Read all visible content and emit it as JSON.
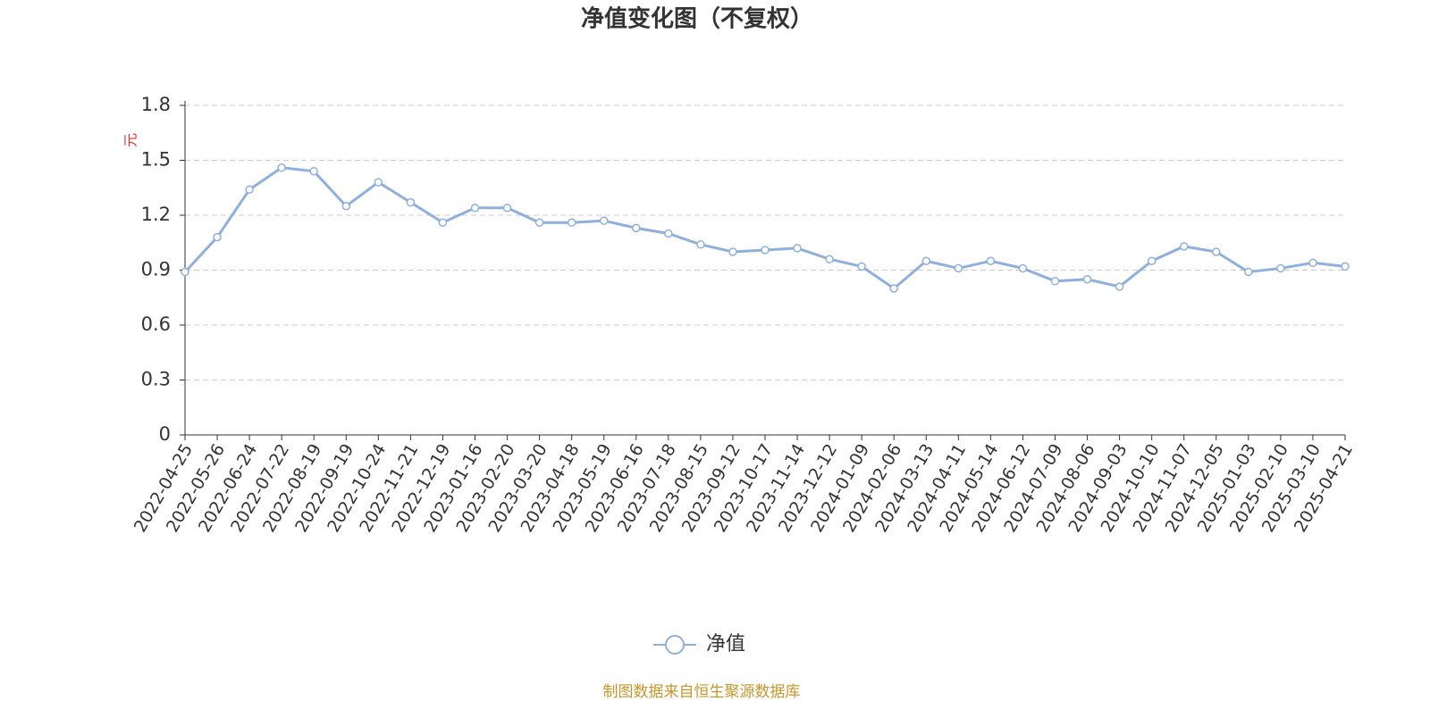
{
  "chart_data": {
    "type": "line",
    "title": "净值变化图（不复权）",
    "y_label": "元",
    "categories": [
      "2022-04-25",
      "2022-05-26",
      "2022-06-24",
      "2022-07-22",
      "2022-08-19",
      "2022-09-19",
      "2022-10-24",
      "2022-11-21",
      "2022-12-19",
      "2023-01-16",
      "2023-02-20",
      "2023-03-20",
      "2023-04-18",
      "2023-05-19",
      "2023-06-16",
      "2023-07-18",
      "2023-08-15",
      "2023-09-12",
      "2023-10-17",
      "2023-11-14",
      "2023-12-12",
      "2024-01-09",
      "2024-02-06",
      "2024-03-13",
      "2024-04-11",
      "2024-05-14",
      "2024-06-12",
      "2024-07-09",
      "2024-08-06",
      "2024-09-03",
      "2024-10-10",
      "2024-11-07",
      "2024-12-05",
      "2025-01-03",
      "2025-02-10",
      "2025-03-10",
      "2025-04-21"
    ],
    "series": [
      {
        "name": "净值",
        "color": "#8fb0dc",
        "values": [
          0.89,
          1.08,
          1.34,
          1.46,
          1.44,
          1.25,
          1.38,
          1.27,
          1.16,
          1.24,
          1.24,
          1.16,
          1.16,
          1.17,
          1.13,
          1.1,
          1.04,
          1.0,
          1.01,
          1.02,
          0.96,
          0.92,
          0.8,
          0.95,
          0.91,
          0.95,
          0.91,
          0.84,
          0.85,
          0.81,
          0.95,
          1.03,
          1.0,
          0.89,
          0.91,
          0.94,
          0.92
        ]
      }
    ],
    "ylim": [
      0,
      1.8
    ],
    "yticks": [
      0,
      0.3,
      0.6,
      0.9,
      1.2,
      1.5,
      1.8
    ],
    "grid": true,
    "legend": "bottom",
    "source": "制图数据来自恒生聚源数据库"
  }
}
